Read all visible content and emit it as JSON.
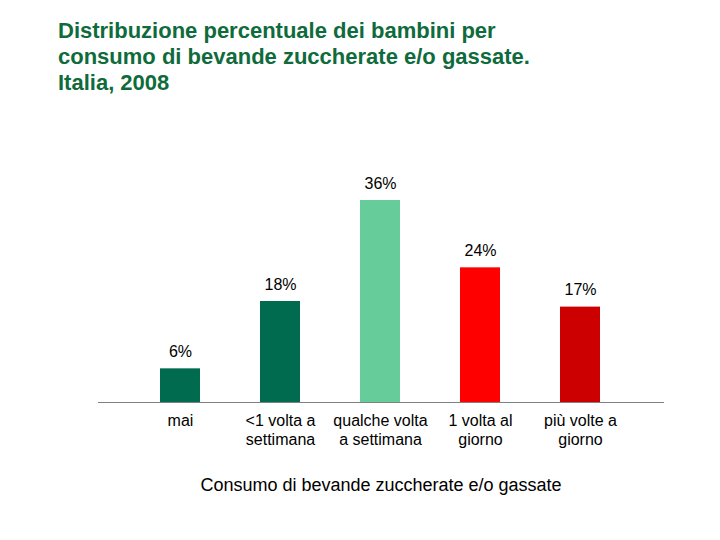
{
  "chart_data": {
    "type": "bar",
    "title": "Distribuzione percentuale dei bambini per\nconsumo di bevande zuccherate e/o gassate.\nItalia, 2008",
    "x_label": "Consumo di bevande zuccherate e/o gassate",
    "categories": [
      "mai",
      "<1 volta a\nsettimana",
      "qualche volta\na settimana",
      "1 volta al\ngiorno",
      "più volte a\ngiorno"
    ],
    "values": [
      6,
      18,
      36,
      24,
      17
    ],
    "value_labels": [
      "6%",
      "18%",
      "36%",
      "24%",
      "17%"
    ],
    "colors": [
      "#006b4f",
      "#006b4f",
      "#66cc99",
      "#ff0000",
      "#cc0000"
    ],
    "data_labels": true,
    "tick_labels": "x",
    "grid": false
  }
}
